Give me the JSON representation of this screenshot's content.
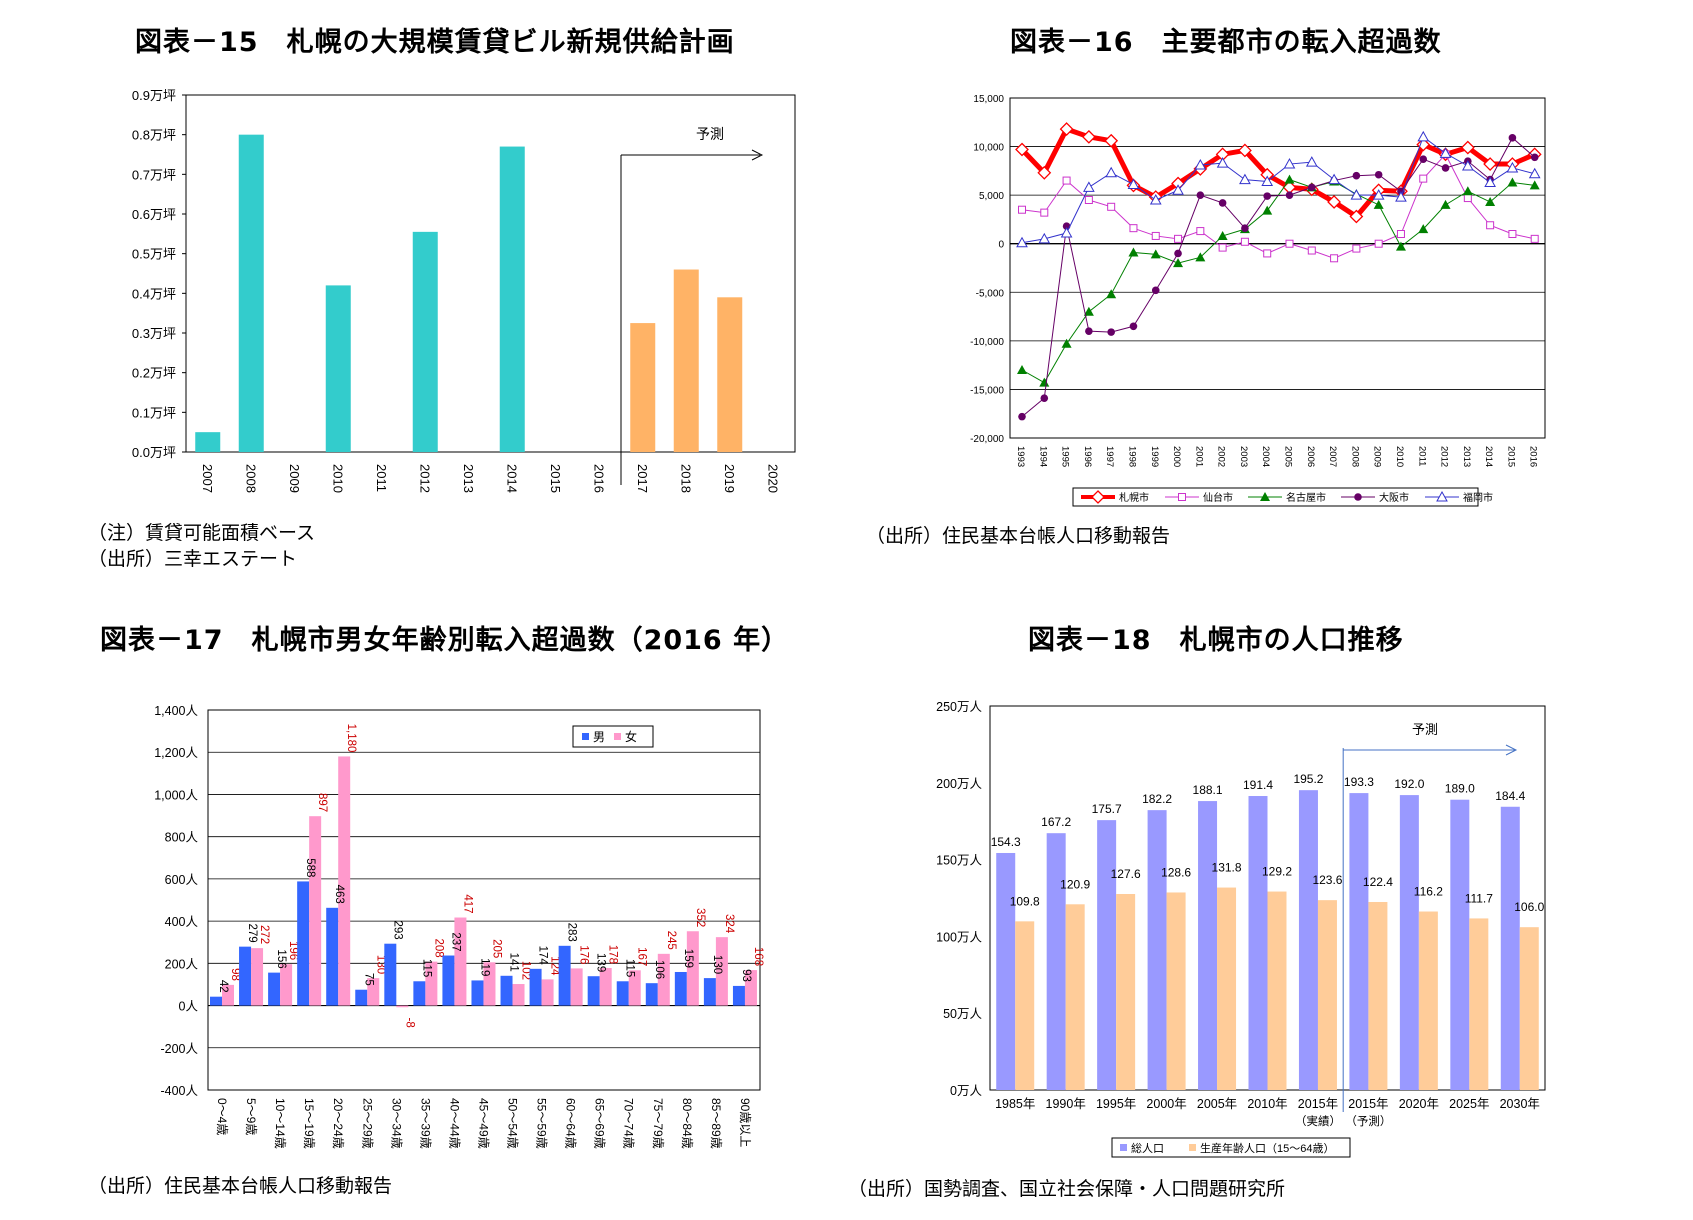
{
  "chart_data": [
    {
      "id": "fig15",
      "type": "bar",
      "title": "図表－15　札幌の大規模賃貸ビル新規供給計画",
      "categories": [
        "2007",
        "2008",
        "2009",
        "2010",
        "2011",
        "2012",
        "2013",
        "2014",
        "2015",
        "2016",
        "2017",
        "2018",
        "2019",
        "2020"
      ],
      "values": [
        0.05,
        0.8,
        0,
        0.42,
        0,
        0.555,
        0,
        0.77,
        0,
        0,
        0.325,
        0.46,
        0.39,
        0
      ],
      "actual_color": "#33CCCC",
      "forecast_color": "#FFB366",
      "forecast_from": "2017",
      "forecast_label": "予測",
      "yticks": [
        "0.0万坪",
        "0.1万坪",
        "0.2万坪",
        "0.3万坪",
        "0.4万坪",
        "0.5万坪",
        "0.6万坪",
        "0.7万坪",
        "0.8万坪",
        "0.9万坪"
      ],
      "ylim": [
        0,
        0.9
      ],
      "notes": [
        "（注）賃貸可能面積ベース",
        "（出所）三幸エステート"
      ]
    },
    {
      "id": "fig16",
      "type": "line",
      "title": "図表－16　主要都市の転入超過数",
      "x": [
        "1993",
        "1994",
        "1995",
        "1996",
        "1997",
        "1998",
        "1999",
        "2000",
        "2001",
        "2002",
        "2003",
        "2004",
        "2005",
        "2006",
        "2007",
        "2008",
        "2009",
        "2010",
        "2011",
        "2012",
        "2013",
        "2014",
        "2015",
        "2016"
      ],
      "yticks": [
        "15,000",
        "10,000",
        "5,000",
        "0",
        "-5,000",
        "-10,000",
        "-15,000",
        "-20,000"
      ],
      "ylim": [
        -20000,
        15000
      ],
      "series": [
        {
          "name": "札幌市",
          "color": "#FF0000",
          "marker": "diamond",
          "values": [
            9700,
            7300,
            11800,
            11000,
            10600,
            6000,
            4800,
            6200,
            7700,
            9200,
            9600,
            7100,
            5800,
            5600,
            4300,
            2800,
            5500,
            5400,
            10200,
            9200,
            9900,
            8200,
            8200,
            9200
          ]
        },
        {
          "name": "仙台市",
          "color": "#CC33CC",
          "marker": "square",
          "values": [
            3500,
            3200,
            6500,
            4500,
            3800,
            1600,
            800,
            500,
            1300,
            -400,
            200,
            -1000,
            0,
            -700,
            -1500,
            -500,
            0,
            1000,
            6700,
            9200,
            4700,
            1900,
            1000,
            500
          ]
        },
        {
          "name": "名古屋市",
          "color": "#008000",
          "marker": "triangle",
          "values": [
            -13000,
            -14300,
            -10300,
            -7000,
            -5200,
            -900,
            -1100,
            -2000,
            -1400,
            800,
            1500,
            3400,
            6600,
            5800,
            6400,
            5100,
            4000,
            -300,
            1500,
            4000,
            5400,
            4300,
            6300,
            6000
          ]
        },
        {
          "name": "大阪市",
          "color": "#660066",
          "marker": "circle",
          "values": [
            -17800,
            -15900,
            1800,
            -9000,
            -9100,
            -8500,
            -4800,
            -1000,
            5000,
            4200,
            1600,
            4900,
            5000,
            5800,
            6500,
            7000,
            7100,
            5400,
            8700,
            7800,
            8500,
            6600,
            10900,
            8900
          ]
        },
        {
          "name": "福岡市",
          "color": "#3333CC",
          "marker": "triangle-open",
          "values": [
            100,
            500,
            1100,
            5800,
            7300,
            6100,
            4500,
            5500,
            8100,
            8300,
            6600,
            6400,
            8200,
            8400,
            6600,
            5000,
            5000,
            4800,
            11000,
            9300,
            8000,
            6300,
            7800,
            7200
          ]
        }
      ],
      "notes": [
        "（出所）住民基本台帳人口移動報告"
      ]
    },
    {
      "id": "fig17",
      "type": "bar",
      "title": "図表－17　札幌市男女年齢別転入超過数（2016 年）",
      "categories": [
        "0～4歳",
        "5～9歳",
        "10～14歳",
        "15～19歳",
        "20～24歳",
        "25～29歳",
        "30～34歳",
        "35～39歳",
        "40～44歳",
        "45～49歳",
        "50～54歳",
        "55～59歳",
        "60～64歳",
        "65～69歳",
        "70～74歳",
        "75～79歳",
        "80～84歳",
        "85～89歳",
        "90歳以上"
      ],
      "series": [
        {
          "name": "男",
          "color": "#3366FF",
          "values": [
            42,
            279,
            156,
            588,
            463,
            75,
            293,
            115,
            237,
            119,
            141,
            174,
            283,
            139,
            115,
            106,
            159,
            130,
            93
          ]
        },
        {
          "name": "女",
          "color": "#FF99CC",
          "values": [
            98,
            272,
            196,
            897,
            1180,
            130,
            -8,
            208,
            417,
            205,
            102,
            124,
            176,
            178,
            167,
            245,
            352,
            324,
            168
          ]
        }
      ],
      "value_labels": {
        "男": [
          "42",
          "279",
          "156",
          "588",
          "463",
          "75",
          "293",
          "115",
          "237",
          "119",
          "141",
          "174",
          "283",
          "139",
          "115",
          "106",
          "159",
          "130",
          "93"
        ],
        "女": [
          "98",
          "272",
          "196",
          "897",
          "1,180",
          "130",
          "-8",
          "208",
          "417",
          "205",
          "102",
          "124",
          "176",
          "178",
          "167",
          "245",
          "352",
          "324",
          "168"
        ]
      },
      "yticks": [
        "1,400人",
        "1,200人",
        "1,000人",
        "800人",
        "600人",
        "400人",
        "200人",
        "0人",
        "-200人",
        "-400人"
      ],
      "ylim": [
        -400,
        1400
      ],
      "legend_position": "top-right",
      "notes": [
        "（出所）住民基本台帳人口移動報告"
      ]
    },
    {
      "id": "fig18",
      "type": "bar",
      "title": "図表－18　札幌市の人口推移",
      "categories": [
        "1985年",
        "1990年",
        "1995年",
        "2000年",
        "2005年",
        "2010年",
        "2015年",
        "2015年",
        "2020年",
        "2025年",
        "2030年"
      ],
      "sublabels": [
        "",
        "",
        "",
        "",
        "",
        "",
        "（実績）",
        "（予測）",
        "",
        "",
        ""
      ],
      "series": [
        {
          "name": "総人口",
          "color": "#9999FF",
          "values": [
            154.3,
            167.2,
            175.7,
            182.2,
            188.1,
            191.4,
            195.2,
            193.3,
            192.0,
            189.0,
            184.4
          ]
        },
        {
          "name": "生産年齢人口（15～64歳）",
          "color": "#FFCC99",
          "values": [
            109.8,
            120.9,
            127.6,
            128.6,
            131.8,
            129.2,
            123.6,
            122.4,
            116.2,
            111.7,
            106.0
          ]
        }
      ],
      "value_labels": {
        "総人口": [
          "154.3",
          "167.2",
          "175.7",
          "182.2",
          "188.1",
          "191.4",
          "195.2",
          "193.3",
          "192.0",
          "189.0",
          "184.4"
        ],
        "生産年齢人口（15～64歳）": [
          "109.8",
          "120.9",
          "127.6",
          "128.6",
          "131.8",
          "129.2",
          "123.6",
          "122.4",
          "116.2",
          "111.7",
          "106.0"
        ]
      },
      "forecast_label": "予測",
      "yticks": [
        "250万人",
        "200万人",
        "150万人",
        "100万人",
        "50万人",
        "0万人"
      ],
      "ylim": [
        0,
        250
      ],
      "legend_position": "bottom",
      "notes": [
        "（出所）国勢調査、国立社会保障・人口問題研究所"
      ]
    }
  ]
}
